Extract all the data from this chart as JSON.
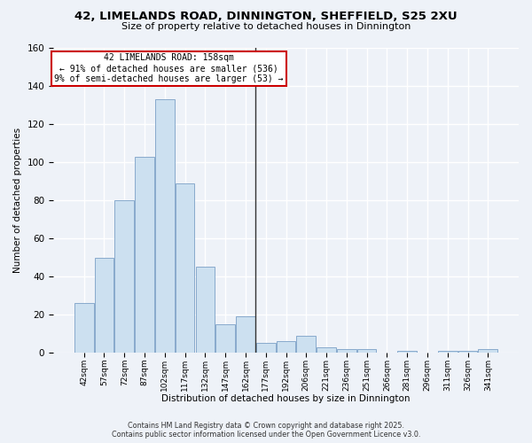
{
  "title": "42, LIMELANDS ROAD, DINNINGTON, SHEFFIELD, S25 2XU",
  "subtitle": "Size of property relative to detached houses in Dinnington",
  "xlabel": "Distribution of detached houses by size in Dinnington",
  "ylabel": "Number of detached properties",
  "footer_line1": "Contains HM Land Registry data © Crown copyright and database right 2025.",
  "footer_line2": "Contains public sector information licensed under the Open Government Licence v3.0.",
  "bar_color": "#cce0f0",
  "bar_edge_color": "#88aacc",
  "background_color": "#eef2f8",
  "grid_color": "#ffffff",
  "categories": [
    "42sqm",
    "57sqm",
    "72sqm",
    "87sqm",
    "102sqm",
    "117sqm",
    "132sqm",
    "147sqm",
    "162sqm",
    "177sqm",
    "192sqm",
    "206sqm",
    "221sqm",
    "236sqm",
    "251sqm",
    "266sqm",
    "281sqm",
    "296sqm",
    "311sqm",
    "326sqm",
    "341sqm"
  ],
  "values": [
    26,
    50,
    80,
    103,
    133,
    89,
    45,
    15,
    19,
    5,
    6,
    9,
    3,
    2,
    2,
    0,
    1,
    0,
    1,
    1,
    2
  ],
  "ylim": [
    0,
    160
  ],
  "yticks": [
    0,
    20,
    40,
    60,
    80,
    100,
    120,
    140,
    160
  ],
  "vline_x": 8.5,
  "annotation_line1": "42 LIMELANDS ROAD: 158sqm",
  "annotation_line2": "← 91% of detached houses are smaller (536)",
  "annotation_line3": "9% of semi-detached houses are larger (53) →",
  "annotation_box_color": "#ffffff",
  "annotation_box_edge": "#cc0000",
  "vline_color": "#333333"
}
